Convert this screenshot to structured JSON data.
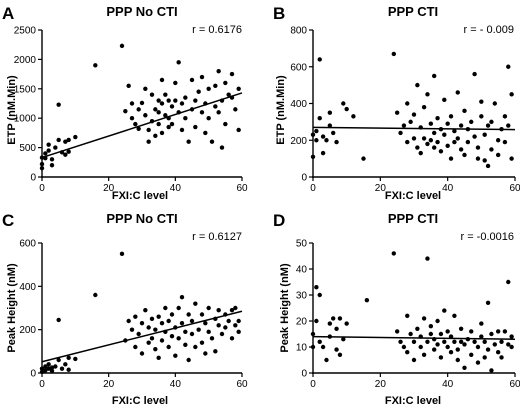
{
  "chart_data": [
    {
      "letter": "A",
      "type": "scatter",
      "title": "PPP No CTI",
      "xlabel": "FXI:C level",
      "ylabel": "ETP (nM.Min)",
      "annotation": "r = 0.6176",
      "xlim": [
        0,
        60
      ],
      "ylim": [
        0,
        2500
      ],
      "xticks": [
        "0",
        "20",
        "40",
        "60"
      ],
      "yticks": [
        "0",
        "500",
        "1000",
        "1500",
        "2000",
        "2500"
      ],
      "fit": {
        "x": [
          0,
          60
        ],
        "y": [
          330,
          1430
        ]
      },
      "points": [
        [
          0,
          150
        ],
        [
          0,
          220
        ],
        [
          0,
          330
        ],
        [
          1,
          320
        ],
        [
          1,
          400
        ],
        [
          2,
          450
        ],
        [
          2,
          550
        ],
        [
          3,
          300
        ],
        [
          3,
          200
        ],
        [
          4,
          500
        ],
        [
          5,
          1230
        ],
        [
          5,
          630
        ],
        [
          6,
          420
        ],
        [
          7,
          600
        ],
        [
          7,
          380
        ],
        [
          8,
          630
        ],
        [
          8,
          430
        ],
        [
          10,
          680
        ],
        [
          16,
          1900
        ],
        [
          24,
          2230
        ],
        [
          25,
          1120
        ],
        [
          26,
          1550
        ],
        [
          27,
          1000
        ],
        [
          27,
          1250
        ],
        [
          28,
          900
        ],
        [
          29,
          1150
        ],
        [
          29,
          820
        ],
        [
          30,
          1260
        ],
        [
          31,
          1500
        ],
        [
          31,
          1050
        ],
        [
          32,
          600
        ],
        [
          32,
          800
        ],
        [
          33,
          950
        ],
        [
          33,
          1400
        ],
        [
          34,
          1150
        ],
        [
          34,
          700
        ],
        [
          35,
          1300
        ],
        [
          35,
          900
        ],
        [
          35,
          1100
        ],
        [
          36,
          1650
        ],
        [
          36,
          750
        ],
        [
          36,
          1250
        ],
        [
          37,
          1050
        ],
        [
          37,
          1400
        ],
        [
          38,
          1000
        ],
        [
          38,
          1300
        ],
        [
          38,
          850
        ],
        [
          39,
          1200
        ],
        [
          39,
          900
        ],
        [
          40,
          1300
        ],
        [
          40,
          1600
        ],
        [
          41,
          1950
        ],
        [
          41,
          1100
        ],
        [
          42,
          800
        ],
        [
          42,
          1250
        ],
        [
          43,
          1000
        ],
        [
          43,
          1350
        ],
        [
          44,
          600
        ],
        [
          45,
          1650
        ],
        [
          45,
          1150
        ],
        [
          46,
          1300
        ],
        [
          46,
          850
        ],
        [
          47,
          1450
        ],
        [
          48,
          1100
        ],
        [
          48,
          1700
        ],
        [
          49,
          1250
        ],
        [
          49,
          750
        ],
        [
          50,
          1500
        ],
        [
          50,
          1000
        ],
        [
          51,
          600
        ],
        [
          52,
          1550
        ],
        [
          52,
          1200
        ],
        [
          53,
          1800
        ],
        [
          53,
          1100
        ],
        [
          54,
          1300
        ],
        [
          54,
          500
        ],
        [
          55,
          900
        ],
        [
          55,
          1600
        ],
        [
          56,
          1400
        ],
        [
          57,
          1750
        ],
        [
          57,
          1350
        ],
        [
          58,
          1150
        ],
        [
          59,
          1500
        ],
        [
          59,
          800
        ]
      ]
    },
    {
      "letter": "B",
      "type": "scatter",
      "title": "PPP CTI",
      "xlabel": "FXI:C level",
      "ylabel": "ETP (nM.Min)",
      "annotation": "r = - 0.009",
      "xlim": [
        0,
        60
      ],
      "ylim": [
        0,
        800
      ],
      "xticks": [
        "0",
        "20",
        "40",
        "60"
      ],
      "yticks": [
        "0",
        "200",
        "400",
        "600",
        "800"
      ],
      "fit": {
        "x": [
          0,
          60
        ],
        "y": [
          270,
          258
        ]
      },
      "points": [
        [
          0,
          230
        ],
        [
          0,
          110
        ],
        [
          1,
          250
        ],
        [
          1,
          200
        ],
        [
          2,
          640
        ],
        [
          2,
          320
        ],
        [
          3,
          220
        ],
        [
          3,
          130
        ],
        [
          4,
          200
        ],
        [
          5,
          350
        ],
        [
          5,
          280
        ],
        [
          6,
          240
        ],
        [
          7,
          190
        ],
        [
          9,
          400
        ],
        [
          10,
          370
        ],
        [
          12,
          330
        ],
        [
          15,
          100
        ],
        [
          24,
          670
        ],
        [
          25,
          350
        ],
        [
          26,
          240
        ],
        [
          27,
          280
        ],
        [
          28,
          400
        ],
        [
          28,
          190
        ],
        [
          29,
          300
        ],
        [
          30,
          210
        ],
        [
          30,
          340
        ],
        [
          31,
          500
        ],
        [
          31,
          160
        ],
        [
          32,
          270
        ],
        [
          32,
          130
        ],
        [
          33,
          380
        ],
        [
          33,
          210
        ],
        [
          34,
          450
        ],
        [
          34,
          180
        ],
        [
          35,
          290
        ],
        [
          35,
          200
        ],
        [
          36,
          550
        ],
        [
          36,
          160
        ],
        [
          36,
          240
        ],
        [
          37,
          320
        ],
        [
          37,
          190
        ],
        [
          38,
          260
        ],
        [
          38,
          140
        ],
        [
          39,
          420
        ],
        [
          39,
          230
        ],
        [
          40,
          290
        ],
        [
          40,
          170
        ],
        [
          41,
          330
        ],
        [
          41,
          100
        ],
        [
          42,
          250
        ],
        [
          42,
          190
        ],
        [
          43,
          460
        ],
        [
          43,
          210
        ],
        [
          44,
          280
        ],
        [
          44,
          150
        ],
        [
          45,
          360
        ],
        [
          45,
          120
        ],
        [
          46,
          260
        ],
        [
          46,
          190
        ],
        [
          47,
          300
        ],
        [
          48,
          560
        ],
        [
          48,
          220
        ],
        [
          49,
          160
        ],
        [
          49,
          100
        ],
        [
          50,
          330
        ],
        [
          50,
          410
        ],
        [
          51,
          230
        ],
        [
          51,
          90
        ],
        [
          52,
          280
        ],
        [
          52,
          60
        ],
        [
          53,
          150
        ],
        [
          53,
          300
        ],
        [
          54,
          400
        ],
        [
          55,
          200
        ],
        [
          55,
          120
        ],
        [
          56,
          260
        ],
        [
          57,
          330
        ],
        [
          57,
          190
        ],
        [
          58,
          600
        ],
        [
          58,
          280
        ],
        [
          59,
          450
        ],
        [
          59,
          100
        ]
      ]
    },
    {
      "letter": "C",
      "type": "scatter",
      "title": "PPP No CTI",
      "xlabel": "FXI:C level",
      "ylabel": "Peak Height (nM)",
      "annotation": "r = 0.6127",
      "xlim": [
        0,
        60
      ],
      "ylim": [
        0,
        600
      ],
      "xticks": [
        "0",
        "20",
        "40",
        "60"
      ],
      "yticks": [
        "0",
        "200",
        "400",
        "600"
      ],
      "fit": {
        "x": [
          0,
          60
        ],
        "y": [
          52,
          285
        ]
      },
      "points": [
        [
          0,
          20
        ],
        [
          0,
          5
        ],
        [
          1,
          30
        ],
        [
          1,
          12
        ],
        [
          2,
          40
        ],
        [
          2,
          20
        ],
        [
          3,
          10
        ],
        [
          3,
          25
        ],
        [
          4,
          30
        ],
        [
          5,
          245
        ],
        [
          5,
          60
        ],
        [
          6,
          20
        ],
        [
          7,
          40
        ],
        [
          8,
          70
        ],
        [
          8,
          15
        ],
        [
          10,
          65
        ],
        [
          16,
          360
        ],
        [
          24,
          550
        ],
        [
          25,
          150
        ],
        [
          26,
          240
        ],
        [
          27,
          200
        ],
        [
          28,
          120
        ],
        [
          28,
          260
        ],
        [
          29,
          180
        ],
        [
          30,
          230
        ],
        [
          30,
          90
        ],
        [
          31,
          290
        ],
        [
          32,
          210
        ],
        [
          32,
          140
        ],
        [
          33,
          160
        ],
        [
          33,
          250
        ],
        [
          34,
          200
        ],
        [
          34,
          110
        ],
        [
          35,
          260
        ],
        [
          35,
          70
        ],
        [
          36,
          230
        ],
        [
          36,
          150
        ],
        [
          37,
          300
        ],
        [
          37,
          190
        ],
        [
          38,
          120
        ],
        [
          38,
          240
        ],
        [
          39,
          170
        ],
        [
          39,
          270
        ],
        [
          40,
          210
        ],
        [
          40,
          80
        ],
        [
          41,
          300
        ],
        [
          41,
          160
        ],
        [
          42,
          350
        ],
        [
          42,
          230
        ],
        [
          43,
          190
        ],
        [
          43,
          130
        ],
        [
          44,
          270
        ],
        [
          44,
          60
        ],
        [
          45,
          240
        ],
        [
          45,
          180
        ],
        [
          46,
          120
        ],
        [
          46,
          320
        ],
        [
          47,
          200
        ],
        [
          48,
          270
        ],
        [
          48,
          140
        ],
        [
          49,
          230
        ],
        [
          49,
          90
        ],
        [
          50,
          300
        ],
        [
          50,
          190
        ],
        [
          51,
          160
        ],
        [
          52,
          250
        ],
        [
          52,
          100
        ],
        [
          53,
          290
        ],
        [
          53,
          220
        ],
        [
          54,
          180
        ],
        [
          55,
          270
        ],
        [
          55,
          210
        ],
        [
          56,
          240
        ],
        [
          57,
          290
        ],
        [
          57,
          160
        ],
        [
          58,
          300
        ],
        [
          58,
          220
        ],
        [
          59,
          240
        ],
        [
          59,
          190
        ]
      ]
    },
    {
      "letter": "D",
      "type": "scatter",
      "title": "PPP CTI",
      "xlabel": "FXI:C level",
      "ylabel": "Peak Height (nM)",
      "annotation": "r = -0.0016",
      "xlim": [
        0,
        60
      ],
      "ylim": [
        0,
        50
      ],
      "xticks": [
        "0",
        "20",
        "40",
        "60"
      ],
      "yticks": [
        "0",
        "10",
        "20",
        "30",
        "40",
        "50"
      ],
      "fit": {
        "x": [
          0,
          60
        ],
        "y": [
          14,
          13
        ]
      },
      "points": [
        [
          0,
          15
        ],
        [
          0,
          10
        ],
        [
          1,
          33
        ],
        [
          1,
          20
        ],
        [
          2,
          30
        ],
        [
          2,
          12
        ],
        [
          3,
          10
        ],
        [
          4,
          5
        ],
        [
          5,
          19
        ],
        [
          5,
          14
        ],
        [
          6,
          21
        ],
        [
          7,
          17
        ],
        [
          7,
          9
        ],
        [
          8,
          21
        ],
        [
          8,
          7
        ],
        [
          9,
          13
        ],
        [
          10,
          19
        ],
        [
          16,
          28
        ],
        [
          24,
          46
        ],
        [
          25,
          16
        ],
        [
          26,
          12
        ],
        [
          27,
          10
        ],
        [
          28,
          22
        ],
        [
          28,
          8
        ],
        [
          29,
          15
        ],
        [
          30,
          12
        ],
        [
          30,
          5
        ],
        [
          31,
          17
        ],
        [
          32,
          10
        ],
        [
          32,
          14
        ],
        [
          33,
          21
        ],
        [
          33,
          7
        ],
        [
          34,
          44
        ],
        [
          34,
          12
        ],
        [
          35,
          15
        ],
        [
          35,
          18
        ],
        [
          36,
          9
        ],
        [
          36,
          13
        ],
        [
          37,
          20
        ],
        [
          37,
          11
        ],
        [
          38,
          15
        ],
        [
          38,
          6
        ],
        [
          39,
          12
        ],
        [
          39,
          24
        ],
        [
          40,
          10
        ],
        [
          40,
          16
        ],
        [
          41,
          14
        ],
        [
          41,
          8
        ],
        [
          42,
          12
        ],
        [
          42,
          22
        ],
        [
          43,
          9
        ],
        [
          43,
          5
        ],
        [
          44,
          17
        ],
        [
          44,
          12
        ],
        [
          45,
          11
        ],
        [
          45,
          2
        ],
        [
          46,
          13
        ],
        [
          47,
          7
        ],
        [
          47,
          16
        ],
        [
          48,
          12
        ],
        [
          49,
          10
        ],
        [
          49,
          4
        ],
        [
          50,
          14
        ],
        [
          50,
          19
        ],
        [
          51,
          12
        ],
        [
          51,
          6
        ],
        [
          52,
          27
        ],
        [
          52,
          9
        ],
        [
          53,
          15
        ],
        [
          53,
          1
        ],
        [
          54,
          11
        ],
        [
          55,
          8
        ],
        [
          55,
          16
        ],
        [
          56,
          12
        ],
        [
          56,
          6
        ],
        [
          57,
          16
        ],
        [
          58,
          11
        ],
        [
          58,
          35
        ],
        [
          59,
          10
        ],
        [
          59,
          14
        ]
      ]
    }
  ]
}
